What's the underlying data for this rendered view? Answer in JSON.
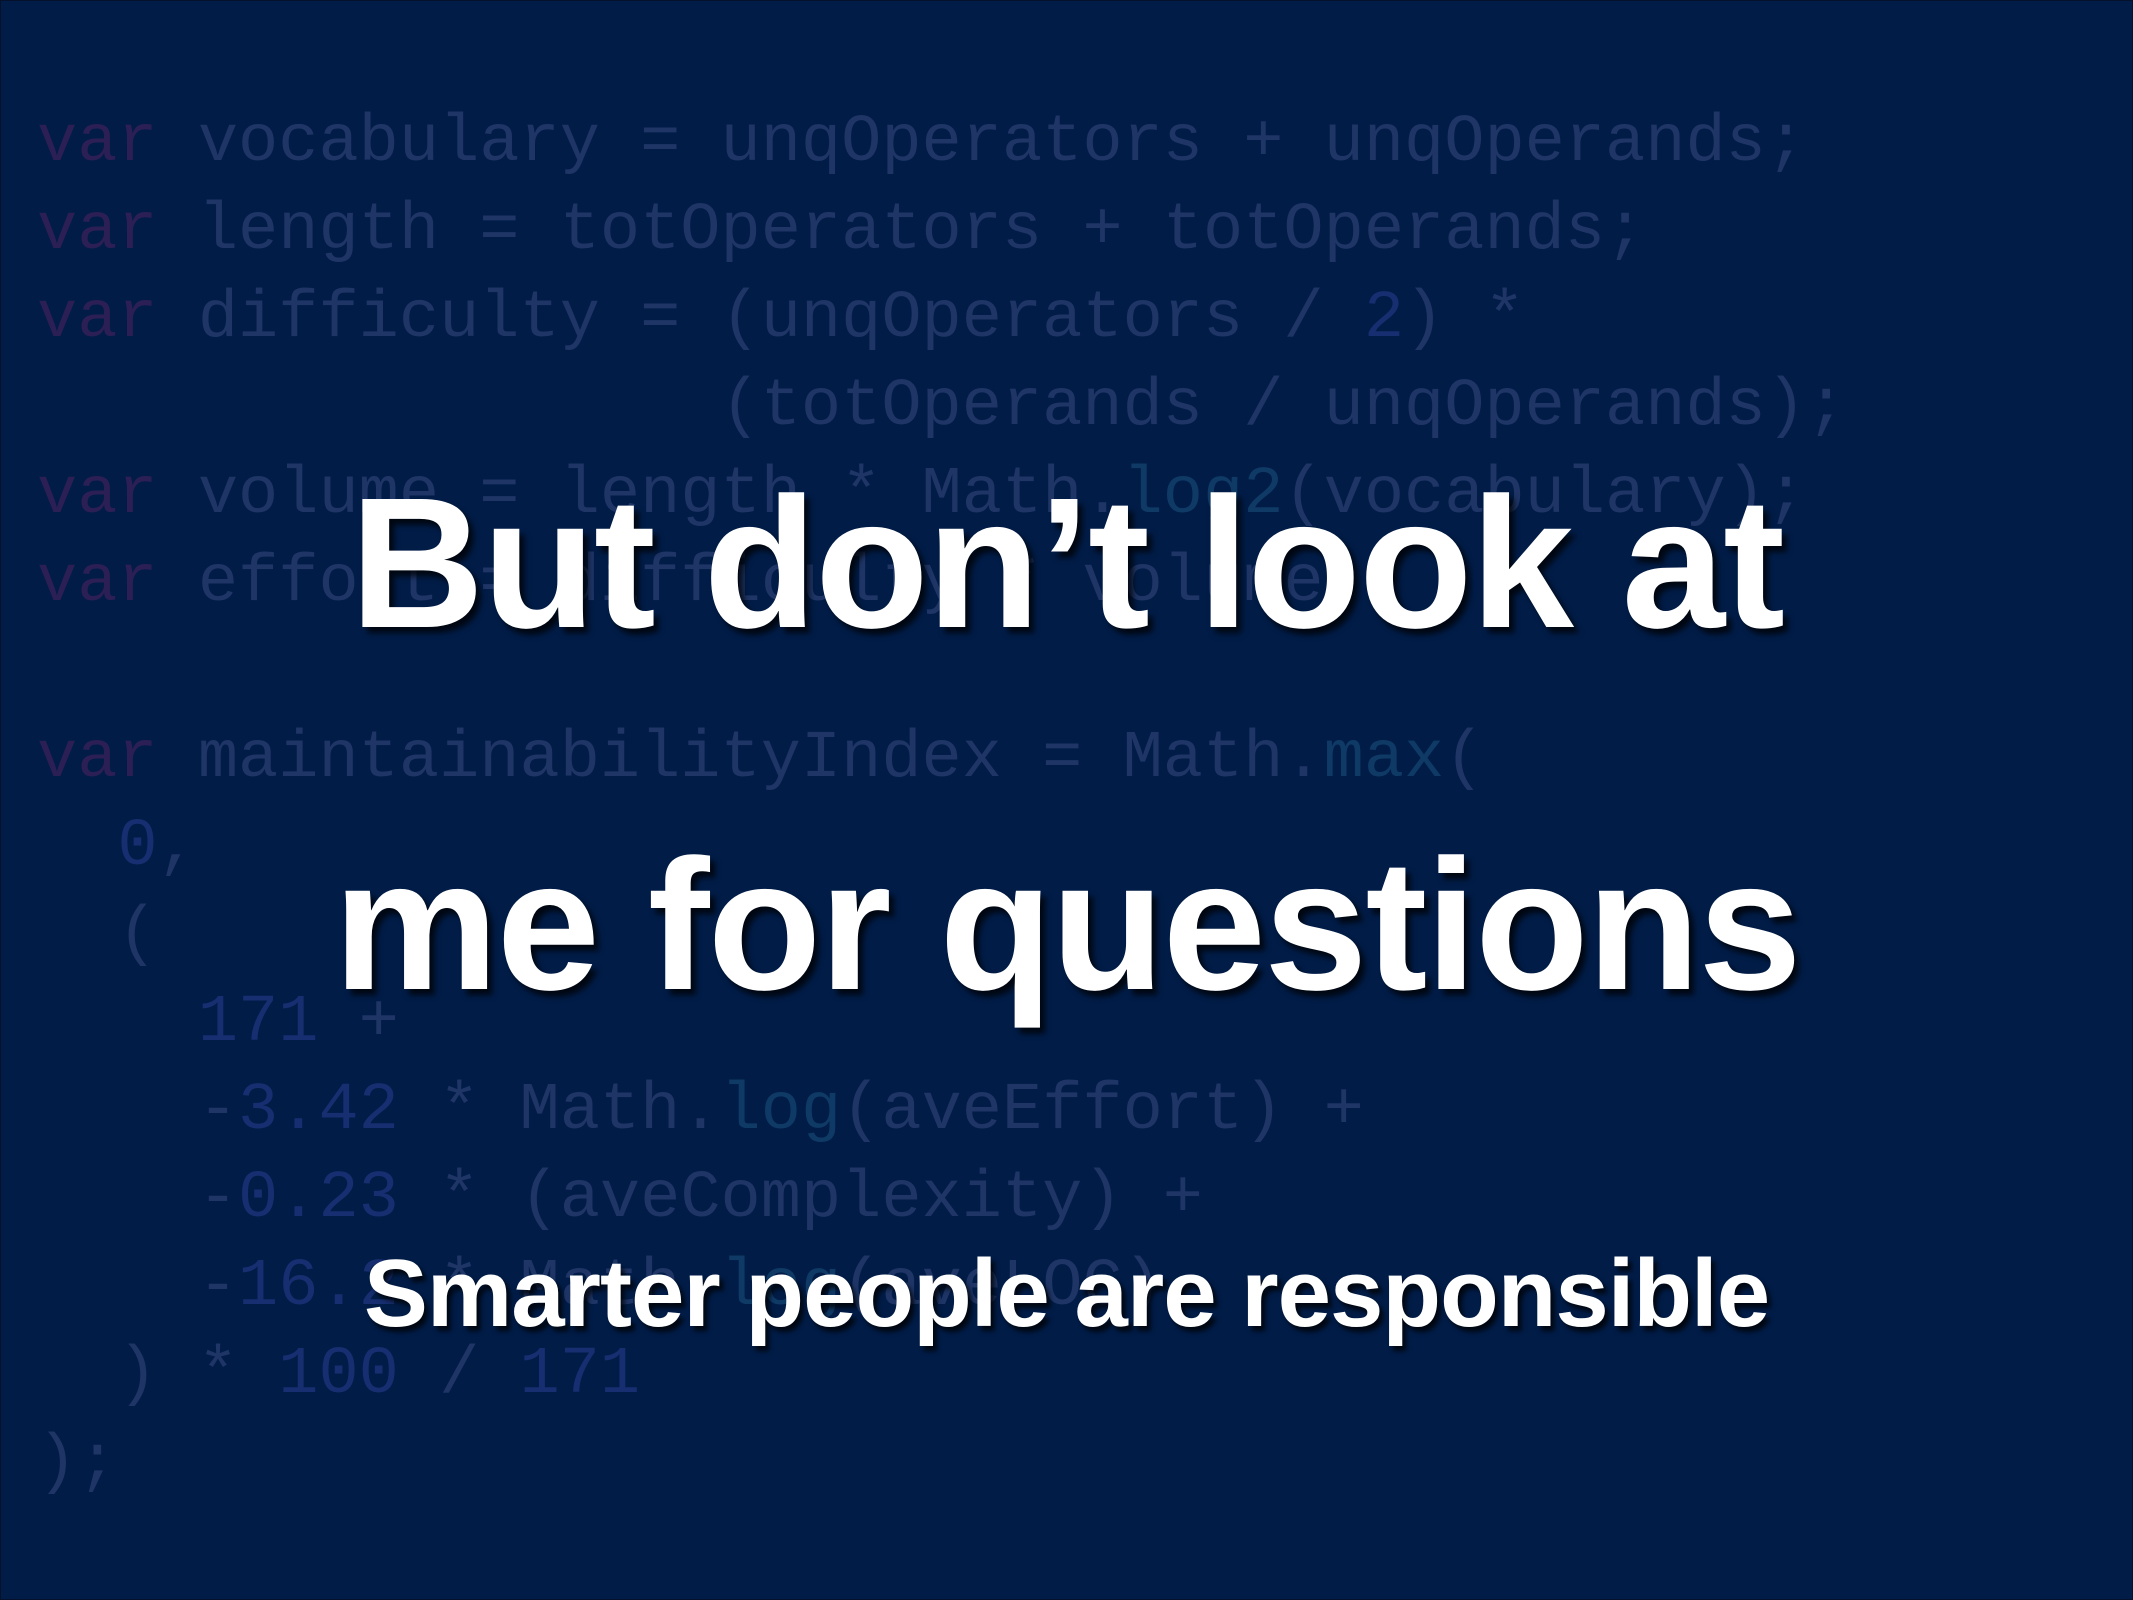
{
  "slide": {
    "title_line_1": "But don’t look at",
    "title_line_2": "me for questions",
    "subtitle": "Smarter people are responsible"
  },
  "background_code": {
    "lines": [
      [
        {
          "t": "var",
          "c": "kw"
        },
        {
          "t": " vocabulary = unqOperators + unqOperands;",
          "c": ""
        }
      ],
      [
        {
          "t": "var",
          "c": "kw"
        },
        {
          "t": " length = totOperators + totOperands;",
          "c": ""
        }
      ],
      [
        {
          "t": "var",
          "c": "kw"
        },
        {
          "t": " difficulty = (unqOperators / ",
          "c": ""
        },
        {
          "t": "2",
          "c": "num"
        },
        {
          "t": ") *",
          "c": ""
        }
      ],
      [
        {
          "t": "                 (totOperands / unqOperands);",
          "c": ""
        }
      ],
      [
        {
          "t": "var",
          "c": "kw"
        },
        {
          "t": " volume = length * Math.",
          "c": ""
        },
        {
          "t": "log2",
          "c": "fn"
        },
        {
          "t": "(vocabulary);",
          "c": ""
        }
      ],
      [
        {
          "t": "var",
          "c": "kw"
        },
        {
          "t": " effort = difficulty * volume;",
          "c": ""
        }
      ],
      [],
      [
        {
          "t": "var",
          "c": "kw"
        },
        {
          "t": " maintainabilityIndex = Math.",
          "c": ""
        },
        {
          "t": "max",
          "c": "fn"
        },
        {
          "t": "(",
          "c": ""
        }
      ],
      [
        {
          "t": "  ",
          "c": ""
        },
        {
          "t": "0",
          "c": "num"
        },
        {
          "t": ",",
          "c": ""
        }
      ],
      [
        {
          "t": "  (",
          "c": ""
        }
      ],
      [
        {
          "t": "    ",
          "c": ""
        },
        {
          "t": "171",
          "c": "num"
        },
        {
          "t": " +",
          "c": ""
        }
      ],
      [
        {
          "t": "    -",
          "c": ""
        },
        {
          "t": "3.42",
          "c": "num"
        },
        {
          "t": " * Math.",
          "c": ""
        },
        {
          "t": "log",
          "c": "fn"
        },
        {
          "t": "(aveEffort) +",
          "c": ""
        }
      ],
      [
        {
          "t": "    -",
          "c": ""
        },
        {
          "t": "0.23",
          "c": "num"
        },
        {
          "t": " * (aveComplexity) +",
          "c": ""
        }
      ],
      [
        {
          "t": "    -",
          "c": ""
        },
        {
          "t": "16.2",
          "c": "num"
        },
        {
          "t": " * Math.",
          "c": ""
        },
        {
          "t": "log",
          "c": "fn"
        },
        {
          "t": "(aveLOC)",
          "c": ""
        }
      ],
      [
        {
          "t": "  ) * ",
          "c": ""
        },
        {
          "t": "100",
          "c": "num"
        },
        {
          "t": " / ",
          "c": ""
        },
        {
          "t": "171",
          "c": "num"
        }
      ],
      [
        {
          "t": ");",
          "c": ""
        }
      ]
    ]
  },
  "colors": {
    "background": "#001c47",
    "headline": "#ffffff",
    "code_text": "#1e3566",
    "code_keyword": "#2b1f55"
  }
}
